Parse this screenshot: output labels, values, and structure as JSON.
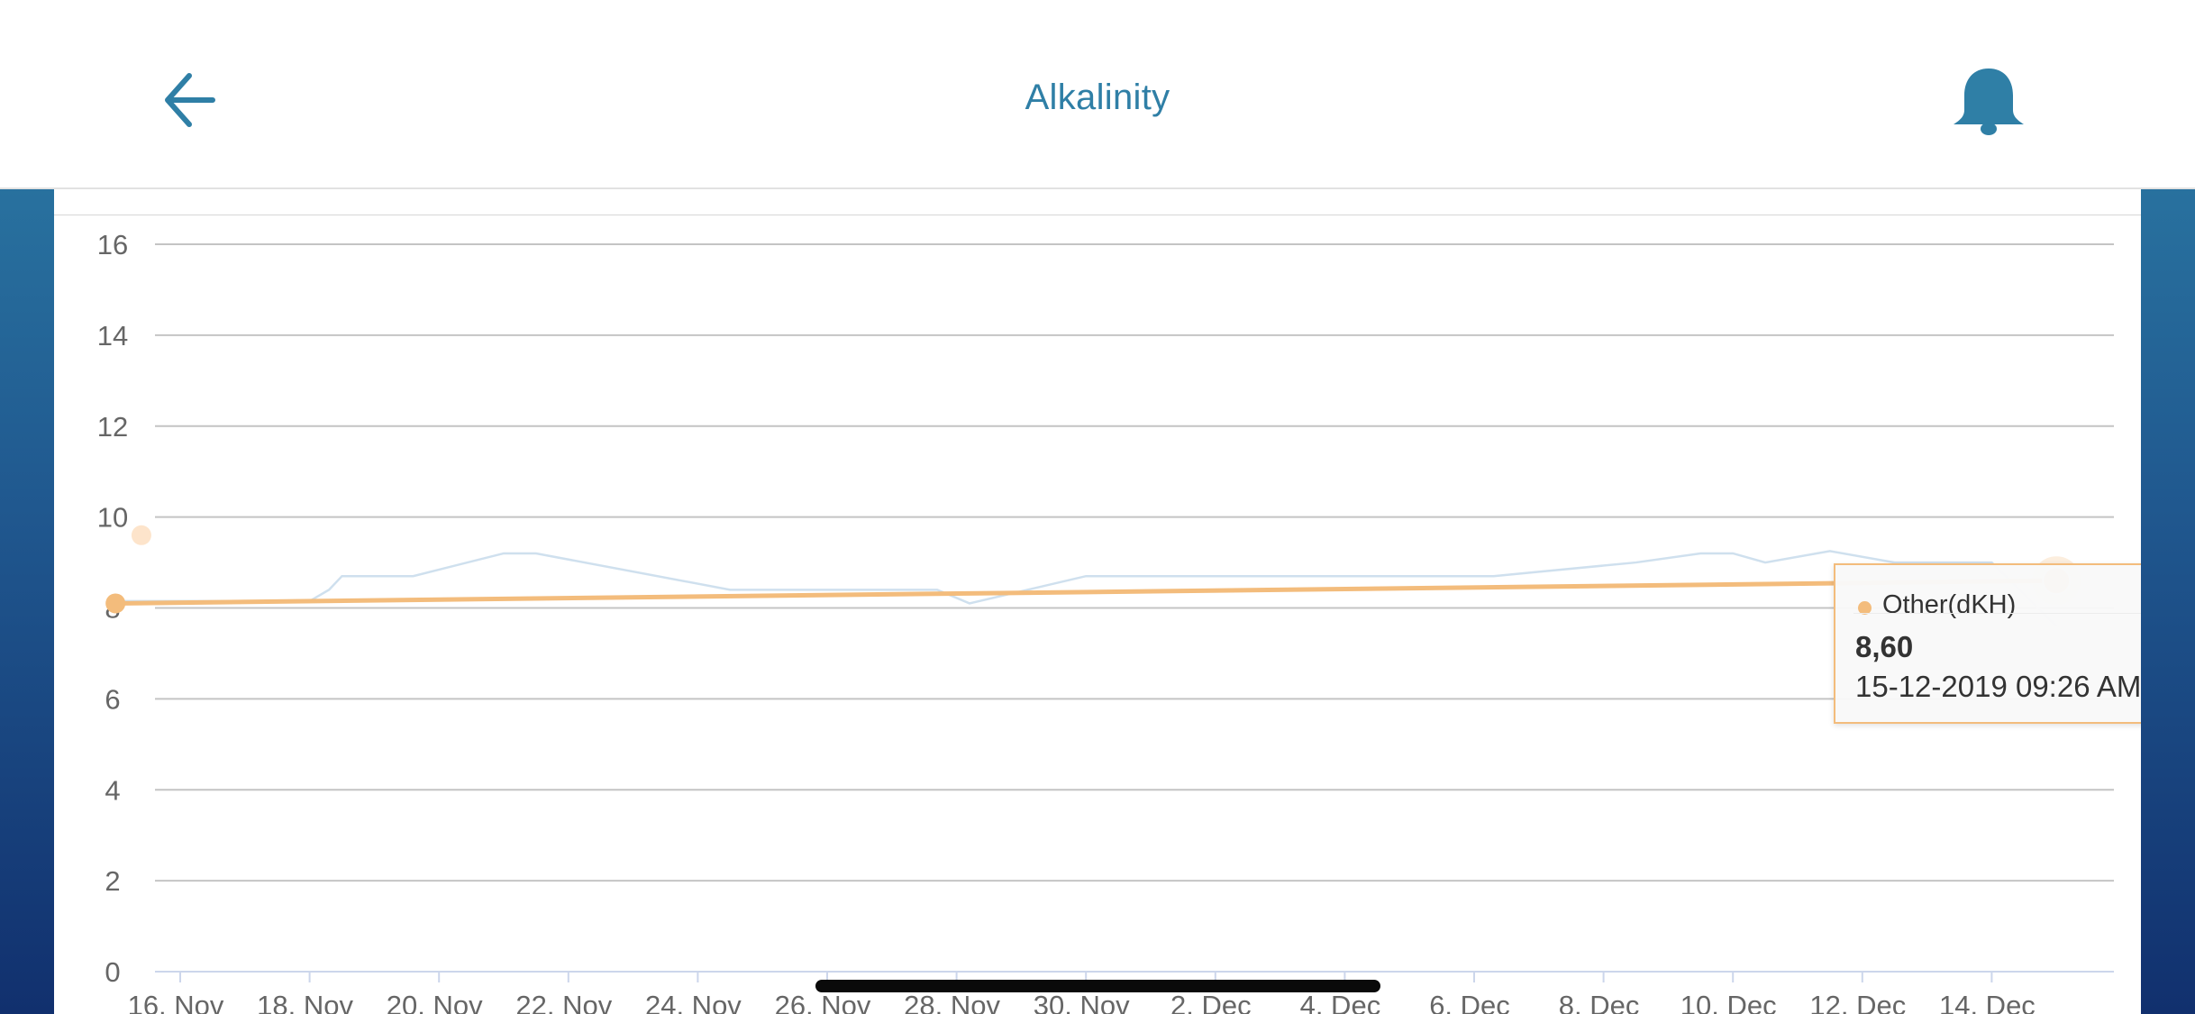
{
  "header": {
    "title": "Alkalinity",
    "back_icon": "arrow-left-icon",
    "notification_icon": "bell-icon"
  },
  "colors": {
    "accent": "#2f7fa6",
    "series_primary": "#f3bc7c",
    "series_secondary": "#cfe0ee",
    "grid": "#c4c4c4",
    "background_top": "#2d80a8",
    "background_bottom": "#11306e"
  },
  "chart_data": {
    "type": "line",
    "ylim": [
      0,
      16
    ],
    "y_ticks": [
      "0",
      "2",
      "4",
      "6",
      "8",
      "10",
      "12",
      "14",
      "16"
    ],
    "x_tick_labels": [
      "16. Nov",
      "18. Nov",
      "20. Nov",
      "22. Nov",
      "24. Nov",
      "26. Nov",
      "28. Nov",
      "30. Nov",
      "2. Dec",
      "4. Dec",
      "6. Dec",
      "8. Dec",
      "10. Dec",
      "12. Dec",
      "14. Dec"
    ],
    "x_range": [
      "2019-11-16",
      "2019-12-15"
    ],
    "grid": true,
    "series": [
      {
        "name": "Other(dKH)",
        "color": "#f3bc7c",
        "points": [
          {
            "x": "2019-11-15",
            "y": 8.1
          },
          {
            "x": "2019-12-15",
            "y": 8.6
          }
        ]
      },
      {
        "color": "#cfe0ee",
        "points": [
          {
            "x": "2019-11-15",
            "y": 8.15
          },
          {
            "x": "2019-11-18",
            "y": 8.15
          },
          {
            "x": "2019-11-18.3",
            "y": 8.4
          },
          {
            "x": "2019-11-18.5",
            "y": 8.7
          },
          {
            "x": "2019-11-19.6",
            "y": 8.7
          },
          {
            "x": "2019-11-21",
            "y": 9.2
          },
          {
            "x": "2019-11-21.5",
            "y": 9.2
          },
          {
            "x": "2019-11-24.5",
            "y": 8.4
          },
          {
            "x": "2019-11-27.7",
            "y": 8.4
          },
          {
            "x": "2019-11-28.2",
            "y": 8.1
          },
          {
            "x": "2019-11-30",
            "y": 8.7
          },
          {
            "x": "2019-12-06.3",
            "y": 8.7
          },
          {
            "x": "2019-12-08.5",
            "y": 9.0
          },
          {
            "x": "2019-12-09.5",
            "y": 9.2
          },
          {
            "x": "2019-12-10",
            "y": 9.2
          },
          {
            "x": "2019-12-10.5",
            "y": 9.0
          },
          {
            "x": "2019-12-11.5",
            "y": 9.25
          },
          {
            "x": "2019-12-12.5",
            "y": 9.0
          },
          {
            "x": "2019-12-14",
            "y": 9.0
          },
          {
            "x": "2019-12-15",
            "y": 7.6
          }
        ]
      }
    ],
    "faded_point": {
      "x": "2019-11-15.4",
      "y": 9.6
    },
    "tooltip": {
      "series": "Other(dKH)",
      "value": "8,60",
      "date": "15-12-2019 09:26 AM"
    }
  }
}
